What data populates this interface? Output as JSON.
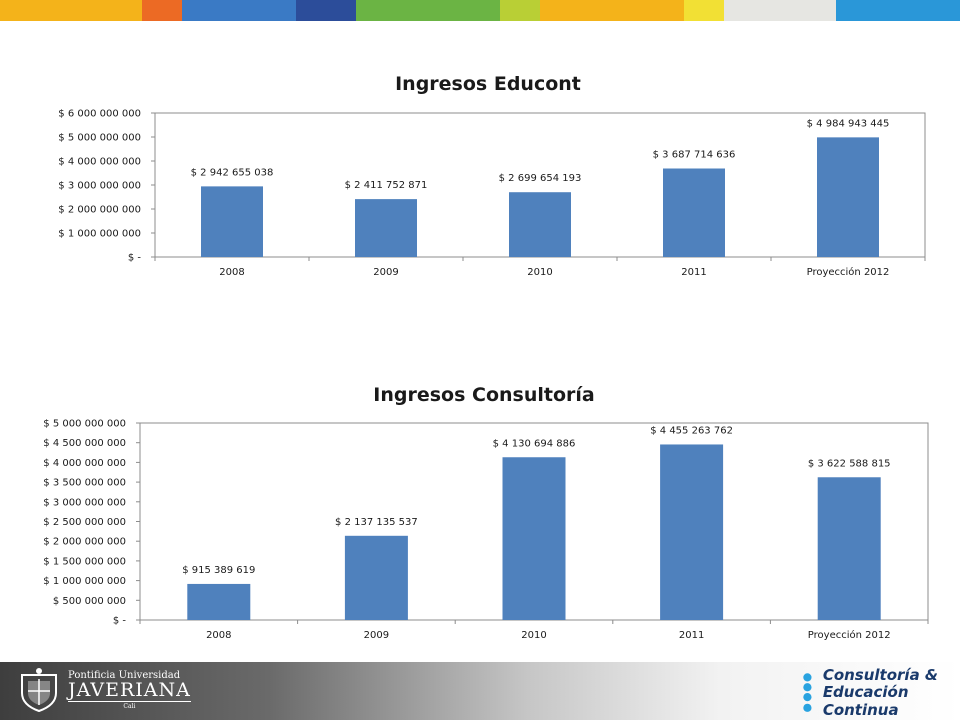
{
  "top_bar_colors": [
    "#f4b31a",
    "#ec6a24",
    "#3a7ac5",
    "#2c4d9a",
    "#6bb444",
    "#b9cf35",
    "#f4b31a",
    "#f2e034",
    "#e6e6e2",
    "#2a97d8"
  ],
  "chart_data": [
    {
      "type": "bar",
      "title": "Ingresos Educont",
      "categories": [
        "2008",
        "2009",
        "2010",
        "2011",
        "Proyección 2012"
      ],
      "values": [
        2942655038,
        2411752871,
        2699654193,
        3687714636,
        4984943445
      ],
      "value_labels": [
        "$ 2 942 655 038",
        "$ 2 411 752 871",
        "$ 2 699 654 193",
        "$ 3 687 714 636",
        "$ 4 984 943 445"
      ],
      "ylim": [
        0,
        6000000000
      ],
      "y_ticks": [
        0,
        1000000000,
        2000000000,
        3000000000,
        4000000000,
        5000000000,
        6000000000
      ],
      "y_tick_labels": [
        "$ -",
        "$ 1 000 000 000",
        "$ 2 000 000 000",
        "$ 3 000 000 000",
        "$ 4 000 000 000",
        "$ 5 000 000 000",
        "$ 6 000 000 000"
      ],
      "bar_color": "#4f81bd",
      "grid": false,
      "legend": "none"
    },
    {
      "type": "bar",
      "title": "Ingresos Consultoría",
      "categories": [
        "2008",
        "2009",
        "2010",
        "2011",
        "Proyección 2012"
      ],
      "values": [
        915389619,
        2137135537,
        4130694886,
        4455263762,
        3622588815
      ],
      "value_labels": [
        "$ 915 389 619",
        "$ 2 137 135 537",
        "$ 4 130 694 886",
        "$ 4 455 263 762",
        "$ 3 622 588 815"
      ],
      "ylim": [
        0,
        5000000000
      ],
      "y_ticks": [
        0,
        500000000,
        1000000000,
        1500000000,
        2000000000,
        2500000000,
        3000000000,
        3500000000,
        4000000000,
        4500000000,
        5000000000
      ],
      "y_tick_labels": [
        "$ -",
        "$ 500 000 000",
        "$ 1 000 000 000",
        "$ 1 500 000 000",
        "$ 2 000 000 000",
        "$ 2 500 000 000",
        "$ 3 000 000 000",
        "$ 3 500 000 000",
        "$ 4 000 000 000",
        "$ 4 500 000 000",
        "$ 5 000 000 000"
      ],
      "bar_color": "#4f81bd",
      "grid": false,
      "legend": "none"
    }
  ],
  "footer": {
    "university": {
      "line1": "Pontificia Universidad",
      "line2": "JAVERIANA",
      "line3": "Cali"
    },
    "brand": {
      "line1": "Consultoría &",
      "line2": "Educación Continua"
    }
  }
}
